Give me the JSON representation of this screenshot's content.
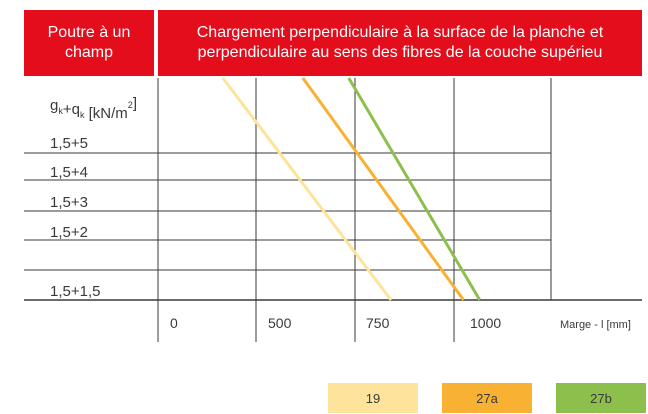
{
  "table": {
    "header_left": "Poutre à un\nchamp",
    "header_right": "Chargement perpendiculaire à la surface de la planche et\nperpendiculaire au sens des fibres de la couche supérieu"
  },
  "chart_data": {
    "type": "line",
    "ylabel": "gk+qk [kN/m²]",
    "xlabel": "Marge - l [mm]",
    "x_ticks": [
      "0",
      "500",
      "750",
      "1000"
    ],
    "y_categories": [
      "1,5+5",
      "1,5+4",
      "1,5+3",
      "1,5+2",
      "1,5+1,5"
    ],
    "series": [
      {
        "name": "19",
        "color": "#fde49a",
        "points": [
          [
            552,
            6
          ],
          [
            841,
            1.5
          ]
        ]
      },
      {
        "name": "27a",
        "color": "#f8b133",
        "points": [
          [
            748,
            6
          ],
          [
            1024,
            1.5
          ]
        ]
      },
      {
        "name": "27b",
        "color": "#8dbf4d",
        "points": [
          [
            840,
            6
          ],
          [
            1065,
            1.5
          ]
        ]
      }
    ]
  }
}
